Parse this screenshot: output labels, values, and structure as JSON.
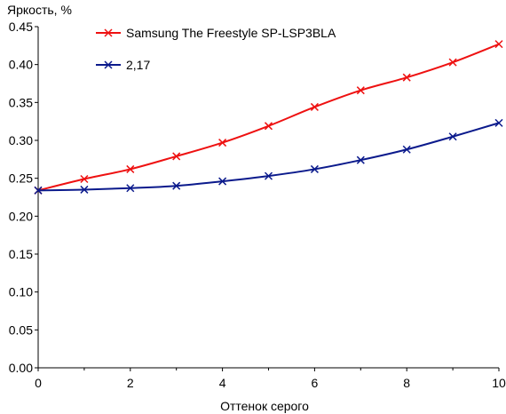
{
  "chart_data": {
    "type": "line",
    "title": "",
    "ylabel": "Яркость, %",
    "xlabel": "Оттенок серого",
    "xlim": [
      0,
      10
    ],
    "ylim": [
      0,
      0.45
    ],
    "x_ticks": [
      "0",
      "2",
      "4",
      "6",
      "8",
      "10"
    ],
    "x_tick_values": [
      0,
      2,
      4,
      6,
      8,
      10
    ],
    "y_ticks": [
      "0.00",
      "0.05",
      "0.10",
      "0.15",
      "0.20",
      "0.25",
      "0.30",
      "0.35",
      "0.40",
      "0.45"
    ],
    "y_tick_values": [
      0,
      0.05,
      0.1,
      0.15,
      0.2,
      0.25,
      0.3,
      0.35,
      0.4,
      0.45
    ],
    "grid": false,
    "legend_position": "top-center",
    "x": [
      0,
      1,
      2,
      3,
      4,
      5,
      6,
      7,
      8,
      9,
      10
    ],
    "series": [
      {
        "name": "Samsung The Freestyle SP-LSP3BLA",
        "color": "#ee1111",
        "marker": "x",
        "values": [
          0.234,
          0.249,
          0.262,
          0.279,
          0.297,
          0.319,
          0.344,
          0.366,
          0.383,
          0.403,
          0.427
        ]
      },
      {
        "name": "2,17",
        "color": "#0b1a8c",
        "marker": "x",
        "values": [
          0.234,
          0.235,
          0.237,
          0.24,
          0.246,
          0.253,
          0.262,
          0.274,
          0.288,
          0.305,
          0.323
        ]
      }
    ]
  }
}
